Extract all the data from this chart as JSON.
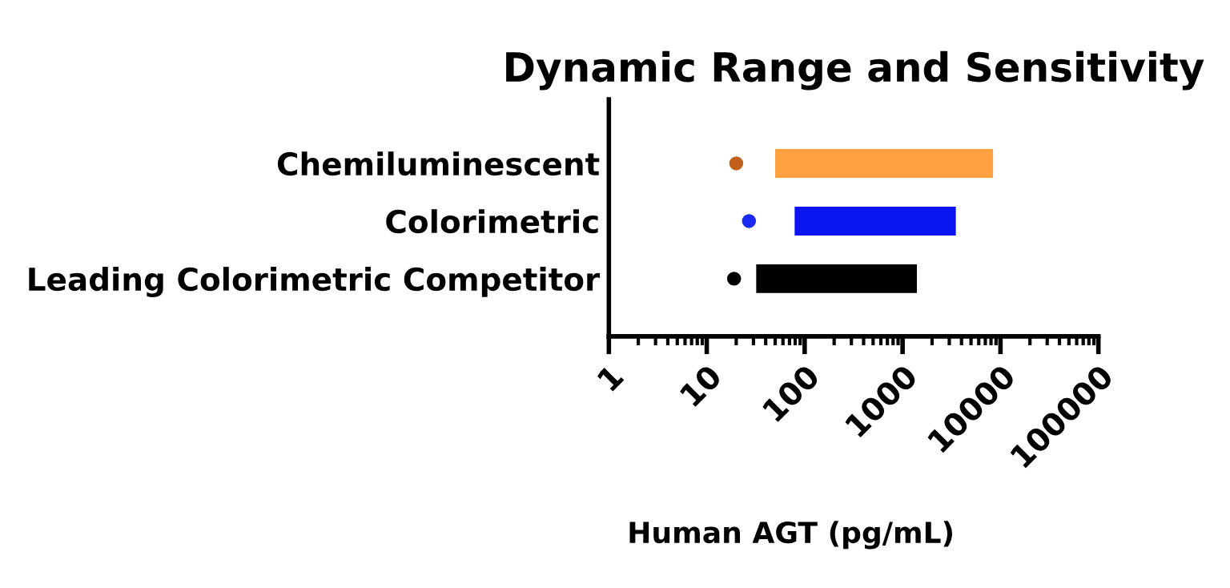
{
  "chart_data": {
    "type": "bar",
    "orientation": "horizontal",
    "title": "Dynamic Range and Sensitivity",
    "xlabel": "Human AGT (pg/mL)",
    "categories": [
      "Chemiluminescent",
      "Colorimetric",
      "Leading Colorimetric Competitor"
    ],
    "series": [
      {
        "colors": [
          "#ffa040",
          "#0a14f0",
          "#000000"
        ],
        "base": [
          50,
          79,
          32
        ],
        "values": [
          8350,
          3421,
          1368
        ]
      },
      {
        "type": "scatter",
        "colors": [
          "#c0601c",
          "#1a2af0",
          "#000000"
        ],
        "values": [
          20,
          27,
          19
        ]
      }
    ],
    "log": "x",
    "xlim": [
      1,
      100000
    ],
    "xticks": [
      1,
      10,
      100,
      1000,
      10000,
      100000
    ],
    "grid": false,
    "legend": false
  }
}
